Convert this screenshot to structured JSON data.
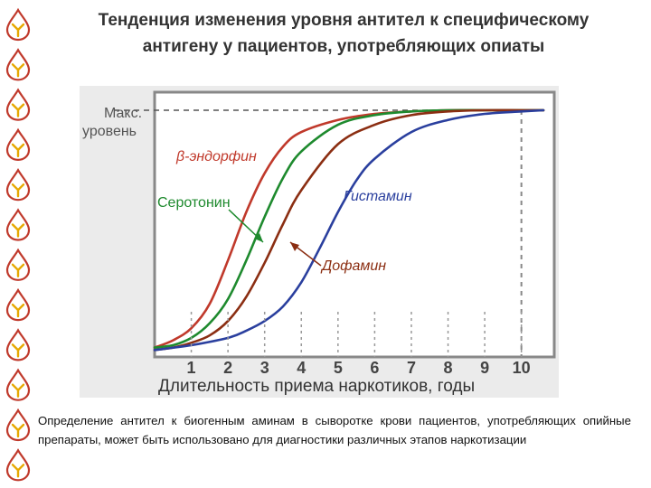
{
  "title": {
    "line1": "Тенденция изменения уровня антител к специфическому",
    "line2": "антигену у пациентов, употребляющих опиаты"
  },
  "caption": {
    "text": "Определение антител к биогенным аминам в сыворотке крови пациентов, употребляющих опийные препараты, может быть использовано для диагностики различных этапов наркотизации"
  },
  "sidebar": {
    "icon": "drop-logo-icon",
    "count": 12,
    "color": "#c0392b"
  },
  "colors": {
    "beta": "#c0392b",
    "sero": "#1e8a2e",
    "dopa": "#8b2e12",
    "hist": "#2a3f9e"
  },
  "chart_data": {
    "type": "line",
    "title": "",
    "xlabel": "Длительность приема наркотиков, годы",
    "ylabel_line1": "Макс.",
    "ylabel_line2": "уровень",
    "x_ticks": [
      "1",
      "2",
      "3",
      "4",
      "5",
      "6",
      "7",
      "8",
      "9",
      "10"
    ],
    "xlim": [
      0,
      10.6
    ],
    "ylim": [
      0,
      1
    ],
    "max_level_x": 10,
    "series": [
      {
        "name": "β-эндорфин",
        "key": "beta",
        "color": "#c0392b",
        "x": [
          0,
          0.5,
          1,
          1.5,
          2,
          2.5,
          3,
          3.5,
          4,
          5,
          6,
          7,
          8,
          9,
          10,
          10.6
        ],
        "y": [
          0.02,
          0.05,
          0.1,
          0.2,
          0.38,
          0.58,
          0.74,
          0.85,
          0.91,
          0.96,
          0.985,
          0.995,
          1,
          1,
          1,
          1
        ]
      },
      {
        "name": "Серотонин",
        "key": "sero",
        "color": "#1e8a2e",
        "x": [
          0,
          0.5,
          1,
          1.5,
          2,
          2.5,
          3,
          3.5,
          4,
          5,
          6,
          7,
          8,
          9,
          10,
          10.6
        ],
        "y": [
          0.02,
          0.03,
          0.06,
          0.12,
          0.22,
          0.38,
          0.56,
          0.72,
          0.83,
          0.94,
          0.98,
          0.995,
          1,
          1,
          1,
          1
        ]
      },
      {
        "name": "Дофамин",
        "key": "dopa",
        "color": "#8b2e12",
        "x": [
          0,
          0.5,
          1,
          1.5,
          2,
          2.5,
          3,
          3.5,
          4,
          5,
          6,
          7,
          8,
          9,
          10,
          10.6
        ],
        "y": [
          0.01,
          0.02,
          0.04,
          0.07,
          0.13,
          0.23,
          0.37,
          0.53,
          0.67,
          0.86,
          0.94,
          0.98,
          0.995,
          1,
          1,
          1
        ]
      },
      {
        "name": "Гистамин",
        "key": "hist",
        "color": "#2a3f9e",
        "x": [
          0,
          1,
          2,
          2.5,
          3,
          3.5,
          4,
          4.5,
          5,
          5.5,
          6,
          7,
          8,
          9,
          10,
          10.6
        ],
        "y": [
          0.01,
          0.03,
          0.06,
          0.09,
          0.13,
          0.19,
          0.29,
          0.43,
          0.58,
          0.71,
          0.8,
          0.91,
          0.96,
          0.985,
          0.995,
          1
        ]
      }
    ]
  }
}
